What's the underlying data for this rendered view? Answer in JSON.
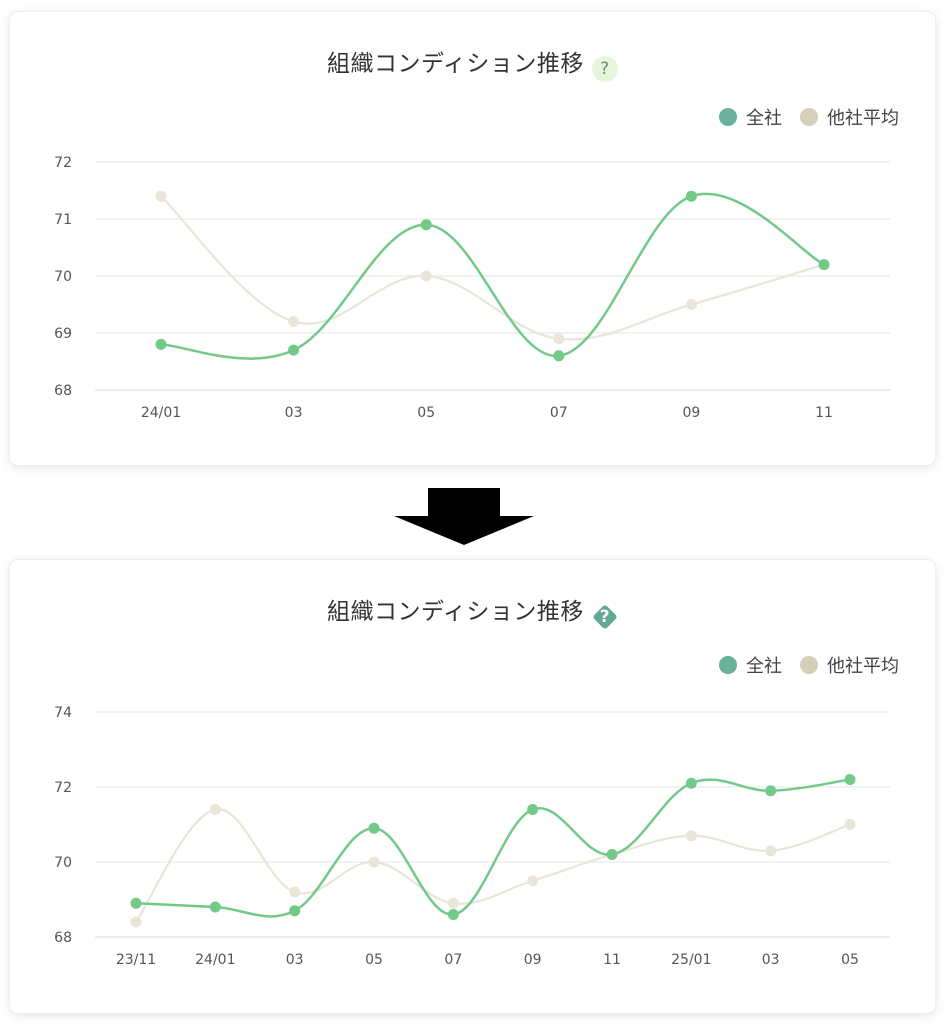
{
  "colors": {
    "company": "#72c98a",
    "company_legend": "#6ab09a",
    "peer": "#e9e5d9",
    "peer_legend": "#d3cfb8",
    "grid": "#e6e6e6"
  },
  "chart_data": [
    {
      "type": "line",
      "title": "組織コンディション推移",
      "help_icon": "question-circle-icon",
      "legend": [
        {
          "label": "全社"
        },
        {
          "label": "他社平均"
        }
      ],
      "legend_position": "top-right",
      "grid": true,
      "categories": [
        "24/01",
        "03",
        "05",
        "07",
        "09",
        "11"
      ],
      "y_ticks": [
        "68",
        "69",
        "70",
        "71",
        "72"
      ],
      "ylim": [
        68,
        72
      ],
      "series": [
        {
          "name": "全社",
          "values": [
            68.8,
            68.7,
            70.9,
            68.6,
            71.4,
            70.2
          ]
        },
        {
          "name": "他社平均",
          "values": [
            71.4,
            69.2,
            70.0,
            68.9,
            69.5,
            70.2
          ]
        }
      ]
    },
    {
      "type": "line",
      "title": "組織コンディション推移",
      "help_icon": "question-diamond-icon",
      "legend": [
        {
          "label": "全社"
        },
        {
          "label": "他社平均"
        }
      ],
      "legend_position": "top-right",
      "grid": true,
      "categories": [
        "23/11",
        "24/01",
        "03",
        "05",
        "07",
        "09",
        "11",
        "25/01",
        "03",
        "05"
      ],
      "y_ticks": [
        "68",
        "70",
        "72",
        "74"
      ],
      "ylim": [
        68,
        74
      ],
      "series": [
        {
          "name": "全社",
          "values": [
            68.9,
            68.8,
            68.7,
            70.9,
            68.6,
            71.4,
            70.2,
            72.1,
            71.9,
            72.2
          ]
        },
        {
          "name": "他社平均",
          "values": [
            68.4,
            71.4,
            69.2,
            70.0,
            68.9,
            69.5,
            70.2,
            70.7,
            70.3,
            71.0
          ]
        }
      ]
    }
  ],
  "transition_arrow": "arrow-down-icon"
}
